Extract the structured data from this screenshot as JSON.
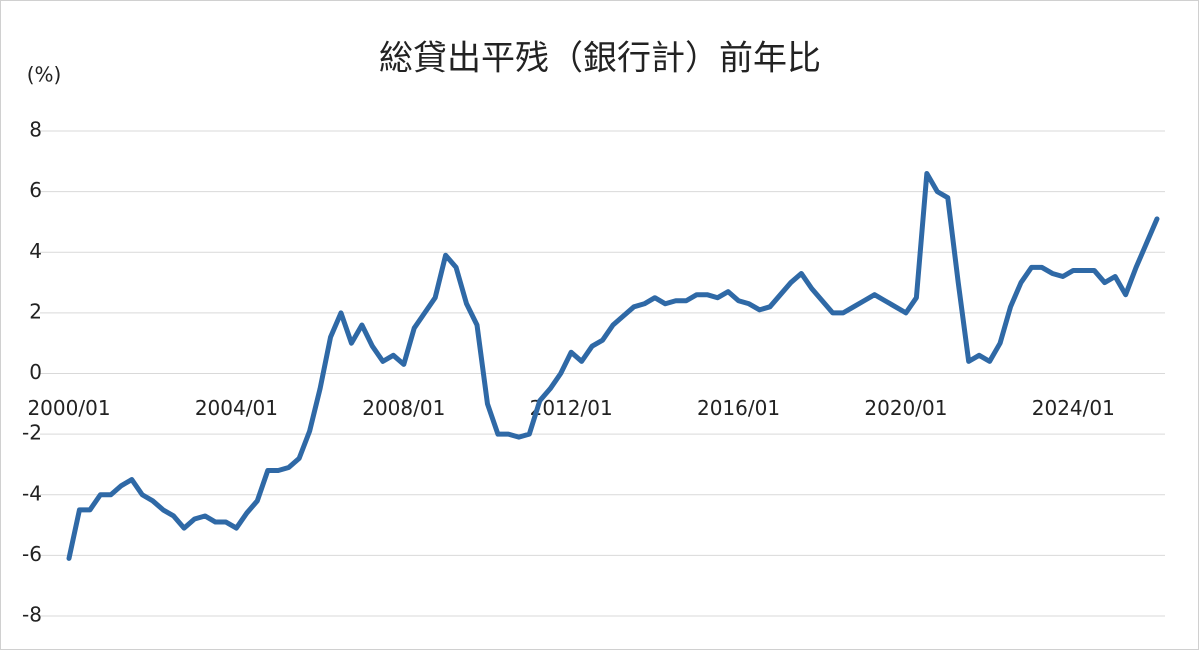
{
  "chart_data": {
    "type": "line",
    "title": "総貸出平残（銀行計）前年比",
    "y_label": "(%)",
    "categories": [
      "2000/01",
      null,
      null,
      null,
      null,
      null,
      null,
      null,
      null,
      null,
      null,
      null,
      null,
      null,
      null,
      null,
      "2004/01",
      null,
      null,
      null,
      null,
      null,
      null,
      null,
      null,
      null,
      null,
      null,
      null,
      null,
      null,
      null,
      "2008/01",
      null,
      null,
      null,
      null,
      null,
      null,
      null,
      null,
      null,
      null,
      null,
      null,
      null,
      null,
      null,
      "2012/01",
      null,
      null,
      null,
      null,
      null,
      null,
      null,
      null,
      null,
      null,
      null,
      null,
      null,
      null,
      null,
      "2016/01",
      null,
      null,
      null,
      null,
      null,
      null,
      null,
      null,
      null,
      null,
      null,
      null,
      null,
      null,
      null,
      "2020/01",
      null,
      null,
      null,
      null,
      null,
      null,
      null,
      null,
      null,
      null,
      null,
      null,
      null,
      null,
      null,
      "2024/01",
      null,
      null,
      null,
      null,
      null,
      null,
      null,
      null
    ],
    "values": [
      -6.1,
      -4.5,
      -4.5,
      -4.0,
      -4.0,
      -3.7,
      -3.5,
      -4.0,
      -4.2,
      -4.5,
      -4.7,
      -5.1,
      -4.8,
      -4.7,
      -4.9,
      -4.9,
      -5.1,
      -4.6,
      -4.2,
      -3.2,
      -3.2,
      -3.1,
      -2.8,
      -1.9,
      -0.5,
      1.2,
      2.0,
      1.0,
      1.6,
      0.9,
      0.4,
      0.6,
      0.3,
      1.5,
      2.0,
      2.5,
      3.9,
      3.5,
      2.3,
      1.6,
      -1.0,
      -2.0,
      -2.0,
      -2.1,
      -2.0,
      -0.9,
      -0.5,
      0.0,
      0.7,
      0.4,
      0.9,
      1.1,
      1.6,
      1.9,
      2.2,
      2.3,
      2.5,
      2.3,
      2.4,
      2.4,
      2.6,
      2.6,
      2.5,
      2.7,
      2.4,
      2.3,
      2.1,
      2.2,
      2.6,
      3.0,
      3.3,
      2.8,
      2.4,
      2.0,
      2.0,
      2.2,
      2.4,
      2.6,
      2.4,
      2.2,
      2.0,
      2.5,
      6.6,
      6.0,
      5.8,
      3.0,
      0.4,
      0.6,
      0.4,
      1.0,
      2.2,
      3.0,
      3.5,
      3.5,
      3.3,
      3.2,
      3.4,
      3.4,
      3.4,
      3.0,
      3.2,
      2.6,
      3.5,
      4.3,
      5.1
    ],
    "color": "#2f69a6",
    "ylim": [
      -8,
      8
    ],
    "yticks": [
      -8,
      -6,
      -4,
      -2,
      0,
      2,
      4,
      6,
      8
    ],
    "grid": true
  }
}
